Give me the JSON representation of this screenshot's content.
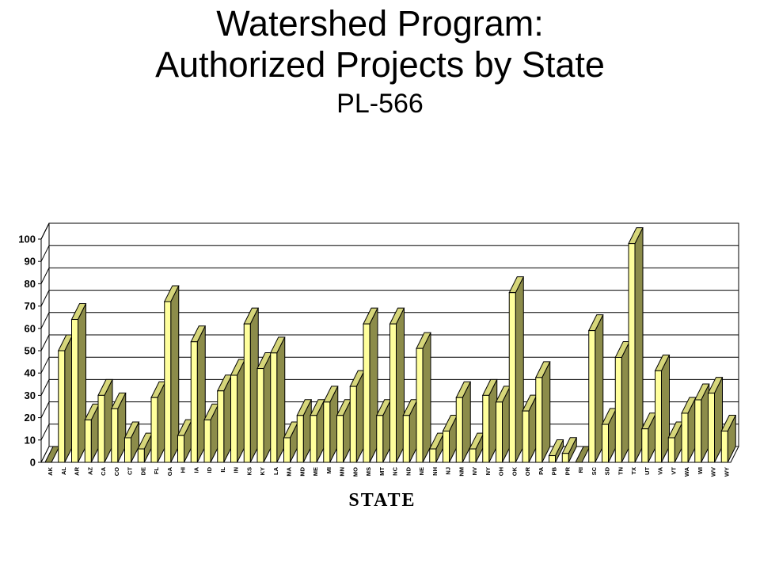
{
  "title_line1": "Watershed Program:",
  "title_line2": "Authorized Projects by State",
  "subtitle": "PL-566",
  "chart_data": {
    "type": "bar",
    "title": "Watershed Program: Authorized Projects by State",
    "subtitle": "PL-566",
    "xlabel": "STATE",
    "ylabel": "",
    "ylim": [
      0,
      100
    ],
    "yticks": [
      0,
      10,
      20,
      30,
      40,
      50,
      60,
      70,
      80,
      90,
      100
    ],
    "grid": true,
    "legend": "none",
    "three_d": true,
    "categories": [
      "AK",
      "AL",
      "AR",
      "AZ",
      "CA",
      "CO",
      "CT",
      "DE",
      "FL",
      "GA",
      "HI",
      "IA",
      "ID",
      "IL",
      "IN",
      "KS",
      "KY",
      "LA",
      "MA",
      "MD",
      "ME",
      "MI",
      "MN",
      "MO",
      "MS",
      "MT",
      "NC",
      "ND",
      "NE",
      "NH",
      "NJ",
      "NM",
      "NV",
      "NY",
      "OH",
      "OK",
      "OR",
      "PA",
      "PB",
      "PR",
      "RI",
      "SC",
      "SD",
      "TN",
      "TX",
      "UT",
      "VA",
      "VT",
      "WA",
      "WI",
      "WV",
      "WY"
    ],
    "values": [
      0,
      50,
      64,
      19,
      30,
      24,
      11,
      6,
      29,
      72,
      12,
      54,
      19,
      32,
      39,
      62,
      42,
      49,
      11,
      21,
      21,
      27,
      21,
      34,
      62,
      21,
      62,
      21,
      51,
      6,
      14,
      29,
      6,
      30,
      27,
      76,
      23,
      38,
      3,
      4,
      0,
      59,
      17,
      47,
      98,
      15,
      41,
      11,
      22,
      28,
      31,
      14
    ],
    "colors": {
      "front": "#ffff9c",
      "side": "#8c8c4a",
      "top": "#d6d67a",
      "zero_side": "#8c8c4a",
      "outline": "#000000",
      "gridline": "#000000"
    }
  }
}
